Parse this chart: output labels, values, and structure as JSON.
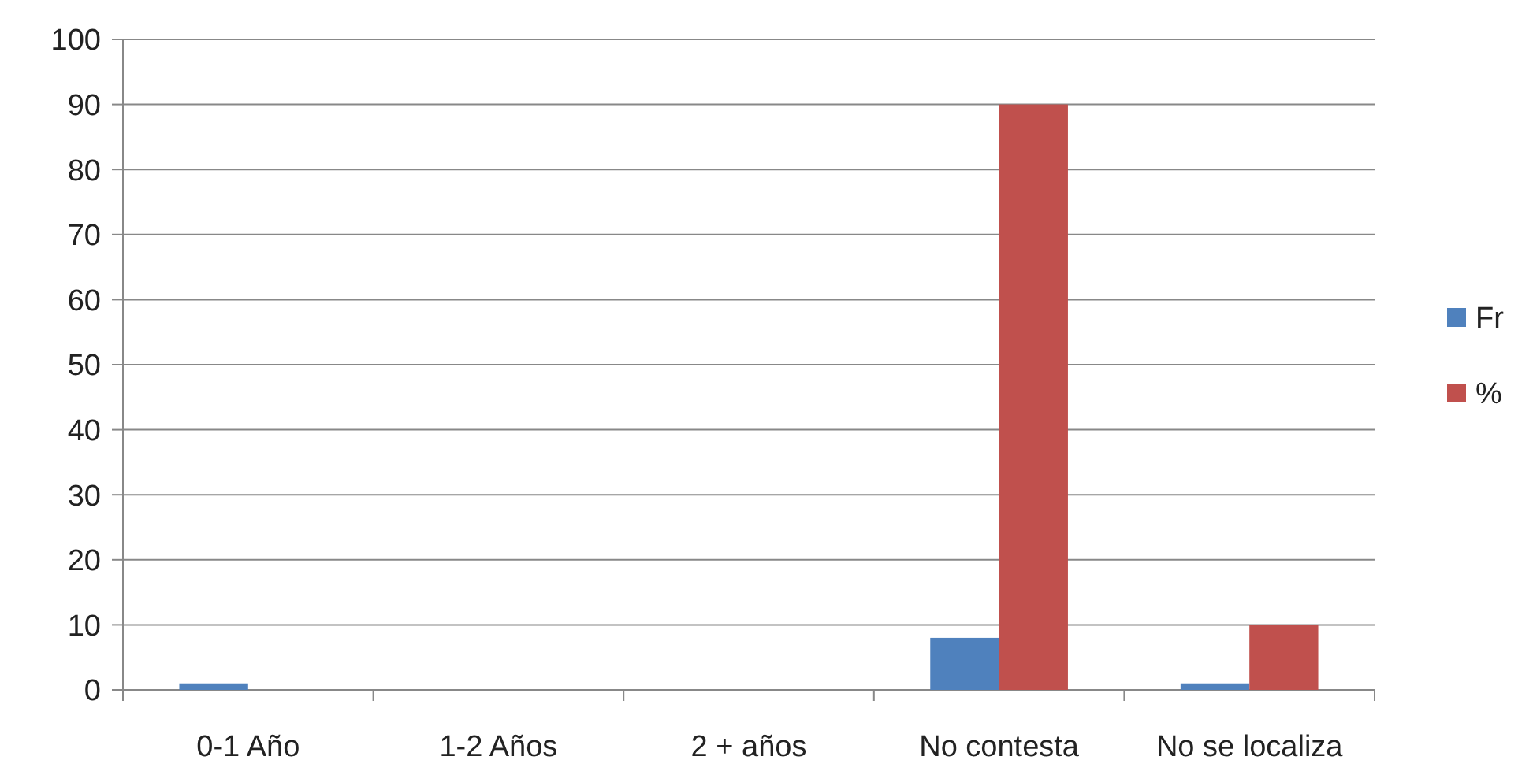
{
  "chart_data": {
    "type": "bar",
    "categories": [
      "0-1 Año",
      "1-2 Años",
      "2 + años",
      "No contesta",
      "No se localiza"
    ],
    "series": [
      {
        "name": "Fr",
        "color": "#4f81bd",
        "values": [
          1,
          0,
          0,
          8,
          1
        ]
      },
      {
        "name": "%",
        "color": "#c0504d",
        "values": [
          0,
          0,
          0,
          90,
          10
        ]
      }
    ],
    "ylim": [
      0,
      100
    ],
    "yticks": [
      0,
      10,
      20,
      30,
      40,
      50,
      60,
      70,
      80,
      90,
      100
    ],
    "grid": "y",
    "legend": "right"
  }
}
